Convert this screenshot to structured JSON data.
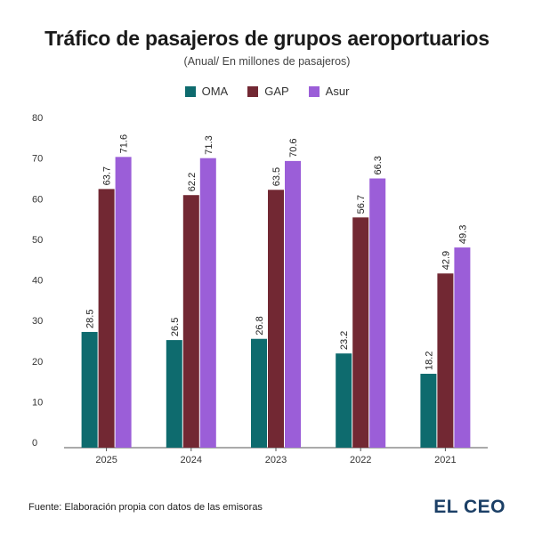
{
  "title": "Tráfico de pasajeros de grupos aeroportuarios",
  "subtitle": "(Anual/ En millones de pasajeros)",
  "source": "Fuente: Elaboración propia con datos de las emisoras",
  "logo": "EL CEO",
  "chart_data": {
    "type": "bar",
    "title": "Tráfico de pasajeros de grupos aeroportuarios",
    "subtitle": "(Anual/ En millones de pasajeros)",
    "xlabel": "",
    "ylabel": "",
    "categories": [
      "2025",
      "2024",
      "2023",
      "2022",
      "2021"
    ],
    "series": [
      {
        "name": "OMA",
        "color": "#0e6b6e",
        "values": [
          28.5,
          26.5,
          26.8,
          23.2,
          18.2
        ]
      },
      {
        "name": "GAP",
        "color": "#722833",
        "values": [
          63.7,
          62.2,
          63.5,
          56.7,
          42.9
        ]
      },
      {
        "name": "Asur",
        "color": "#9b5ed8",
        "values": [
          71.6,
          71.3,
          70.6,
          66.3,
          49.3
        ]
      }
    ],
    "ylim": [
      0,
      80
    ],
    "yticks": [
      0,
      10,
      20,
      30,
      40,
      50,
      60,
      70,
      80
    ],
    "grid": false,
    "legend_position": "top-center"
  }
}
